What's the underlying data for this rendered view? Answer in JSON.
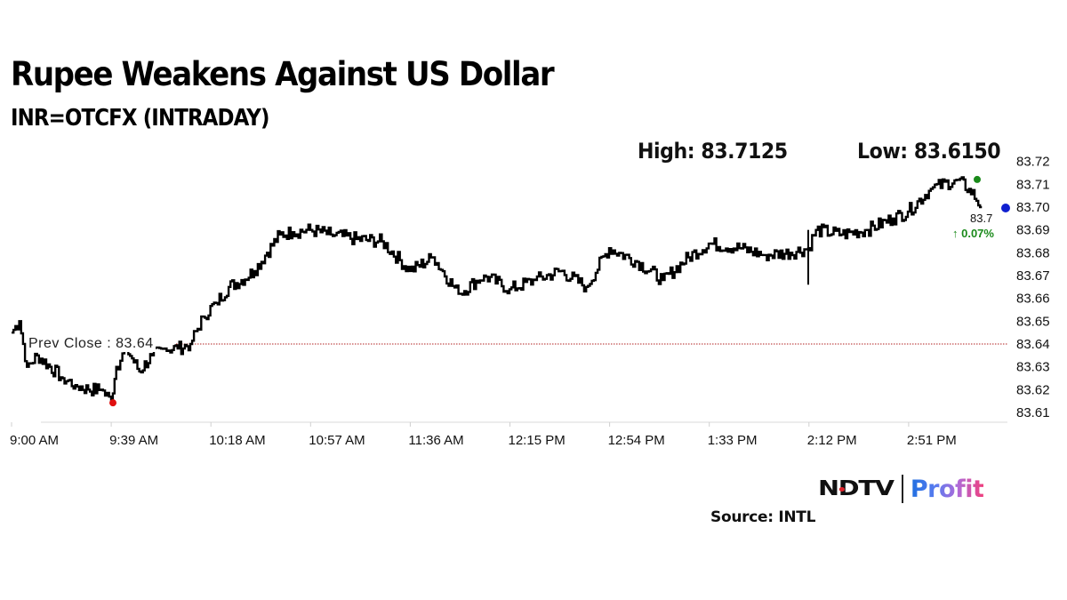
{
  "header": {
    "title": "Rupee Weakens Against US Dollar",
    "subtitle": "INR=OTCFX (INTRADAY)",
    "high_label": "High: 83.7125",
    "low_label": "Low: 83.6150"
  },
  "annotations": {
    "prev_close_label": "Prev Close : 83.64",
    "last_value": "83.7",
    "change": "↑ 0.07%"
  },
  "branding": {
    "ndtv": "NDTV",
    "profit": "Profit",
    "source": "Source: INTL"
  },
  "colors": {
    "line": "#000000",
    "prev_close_line": "#b22222",
    "high_marker": "#1a8a1a",
    "low_marker": "#e01010",
    "last_marker": "#1020d0",
    "change_text": "#1b8a1b",
    "grid": "#d9d9d9"
  },
  "chart_data": {
    "type": "line",
    "title": "Rupee Weakens Against US Dollar",
    "subtitle": "INR=OTCFX (INTRADAY)",
    "xlabel": "",
    "ylabel": "",
    "x_ticks": [
      "9:00 AM",
      "9:39 AM",
      "10:18 AM",
      "10:57 AM",
      "11:36 AM",
      "12:15 PM",
      "12:54 PM",
      "1:33 PM",
      "2:12 PM",
      "2:51 PM"
    ],
    "y_ticks": [
      83.72,
      83.71,
      83.7,
      83.69,
      83.68,
      83.67,
      83.66,
      83.65,
      83.64,
      83.63,
      83.62,
      83.61
    ],
    "ylim": [
      83.61,
      83.72
    ],
    "y_axis_position": "right",
    "grid": false,
    "high": 83.7125,
    "low": 83.615,
    "prev_close": 83.64,
    "last": 83.7,
    "change_pct": 0.07,
    "series": [
      {
        "name": "INR=OTCFX",
        "x": [
          "9:00",
          "9:03",
          "9:06",
          "9:10",
          "9:15",
          "9:20",
          "9:25",
          "9:30",
          "9:35",
          "9:39",
          "9:41",
          "9:45",
          "9:50",
          "9:55",
          "10:00",
          "10:05",
          "10:10",
          "10:15",
          "10:20",
          "10:25",
          "10:30",
          "10:35",
          "10:40",
          "10:45",
          "10:50",
          "10:57",
          "11:05",
          "11:15",
          "11:25",
          "11:36",
          "11:45",
          "11:55",
          "12:05",
          "12:15",
          "12:25",
          "12:35",
          "12:45",
          "12:54",
          "13:05",
          "13:15",
          "13:25",
          "13:33",
          "13:45",
          "13:55",
          "14:05",
          "14:12",
          "14:15",
          "14:25",
          "14:35",
          "14:45",
          "14:51",
          "15:00",
          "15:10",
          "15:15",
          "15:20"
        ],
        "values": [
          83.645,
          83.65,
          83.63,
          83.635,
          83.63,
          83.625,
          83.622,
          83.62,
          83.62,
          83.615,
          83.63,
          83.638,
          83.628,
          83.635,
          83.638,
          83.638,
          83.64,
          83.652,
          83.658,
          83.665,
          83.668,
          83.672,
          83.68,
          83.688,
          83.689,
          83.69,
          83.688,
          83.686,
          83.685,
          83.672,
          83.678,
          83.662,
          83.67,
          83.664,
          83.668,
          83.672,
          83.665,
          83.682,
          83.676,
          83.668,
          83.678,
          83.684,
          83.682,
          83.679,
          83.68,
          83.682,
          83.69,
          83.688,
          83.69,
          83.695,
          83.698,
          83.708,
          83.712,
          83.708,
          83.7
        ]
      }
    ]
  }
}
